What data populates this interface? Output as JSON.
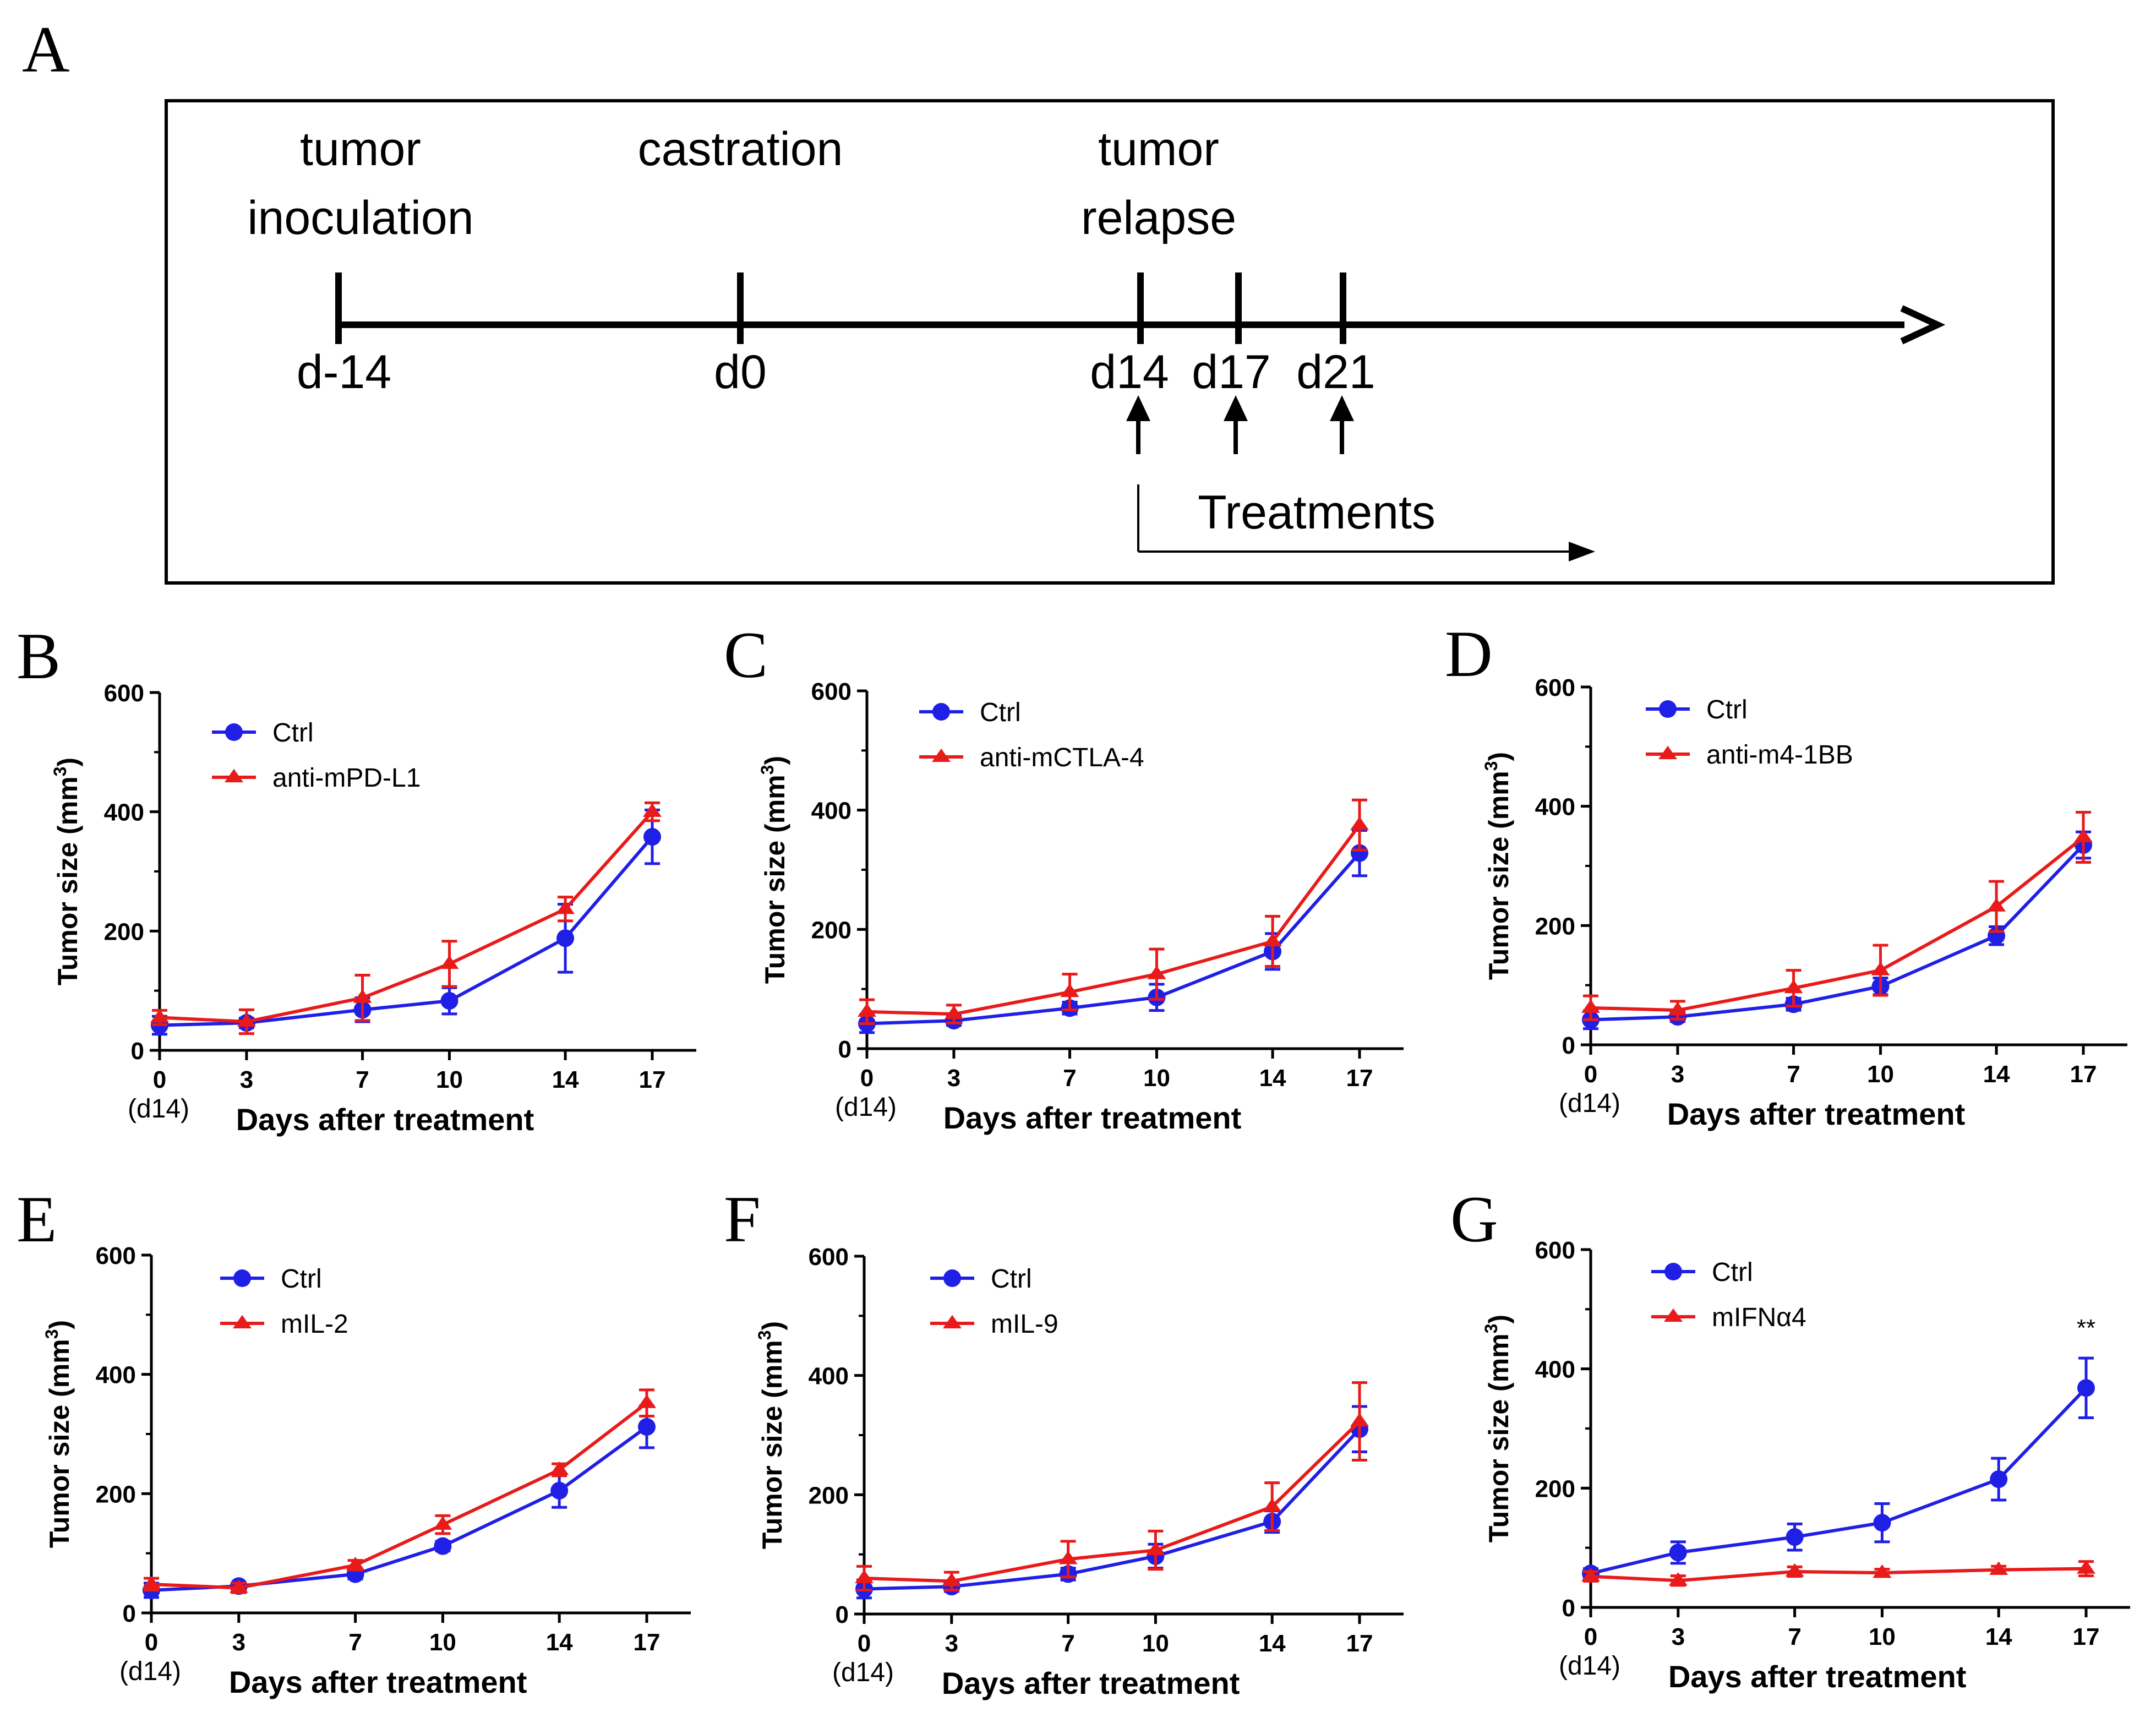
{
  "panelA": {
    "label": "A",
    "events": [
      {
        "title_lines": [
          "tumor",
          "inoculation"
        ],
        "day": "d-14"
      },
      {
        "title_lines": [
          "castration"
        ],
        "day": "d0"
      },
      {
        "title_lines": [
          "tumor",
          "relapse"
        ],
        "day": "d14"
      },
      {
        "title_lines": [],
        "day": "d17"
      },
      {
        "title_lines": [],
        "day": "d21"
      }
    ],
    "treatments_label": "Treatments"
  },
  "colors": {
    "ctrl": "#1f1fe6",
    "treat": "#e81a1a",
    "axis": "#000000"
  },
  "chart_data": [
    {
      "panel": "B",
      "type": "line",
      "x": [
        0,
        3,
        7,
        10,
        14,
        17
      ],
      "x_tick_labels": [
        "0",
        "3",
        "7",
        "10",
        "14",
        "17"
      ],
      "x_sublabel": "(d14)",
      "xlabel": "Days after treatment",
      "ylabel": "Tumor size (mm",
      "ylabel_sup": "3",
      "ylabel_end": ")",
      "ylim": [
        0,
        600
      ],
      "y_ticks": [
        "0",
        "200",
        "400",
        "600"
      ],
      "annotation": "",
      "series": [
        {
          "name": "Ctrl",
          "marker": "circle",
          "values": [
            42,
            46,
            68,
            83,
            188,
            358
          ],
          "errors": [
            15,
            8,
            20,
            22,
            57,
            45
          ]
        },
        {
          "name": "anti-mPD-L1",
          "marker": "triangle",
          "values": [
            55,
            48,
            88,
            145,
            237,
            400
          ],
          "errors": [
            12,
            20,
            38,
            38,
            20,
            15
          ]
        }
      ]
    },
    {
      "panel": "C",
      "type": "line",
      "x": [
        0,
        3,
        7,
        10,
        14,
        17
      ],
      "x_tick_labels": [
        "0",
        "3",
        "7",
        "10",
        "14",
        "17"
      ],
      "x_sublabel": "(d14)",
      "xlabel": "Days after treatment",
      "ylabel": "Tumor size (mm",
      "ylabel_sup": "3",
      "ylabel_end": ")",
      "ylim": [
        0,
        600
      ],
      "y_ticks": [
        "0",
        "200",
        "400",
        "600"
      ],
      "annotation": "",
      "series": [
        {
          "name": "Ctrl",
          "marker": "circle",
          "values": [
            42,
            47,
            68,
            86,
            163,
            328
          ],
          "errors": [
            15,
            8,
            10,
            22,
            30,
            38
          ]
        },
        {
          "name": "anti-mCTLA-4",
          "marker": "triangle",
          "values": [
            62,
            58,
            95,
            125,
            180,
            375
          ],
          "errors": [
            20,
            15,
            30,
            42,
            42,
            42
          ]
        }
      ]
    },
    {
      "panel": "D",
      "type": "line",
      "x": [
        0,
        3,
        7,
        10,
        14,
        17
      ],
      "x_tick_labels": [
        "0",
        "3",
        "7",
        "10",
        "14",
        "17"
      ],
      "x_sublabel": "(d14)",
      "xlabel": "Days after treatment",
      "ylabel": "Tumor size (mm",
      "ylabel_sup": "3",
      "ylabel_end": ")",
      "ylim": [
        0,
        600
      ],
      "y_ticks": [
        "0",
        "200",
        "400",
        "600"
      ],
      "annotation": "",
      "series": [
        {
          "name": "Ctrl",
          "marker": "circle",
          "values": [
            42,
            47,
            68,
            98,
            183,
            335
          ],
          "errors": [
            15,
            8,
            10,
            14,
            15,
            22
          ]
        },
        {
          "name": "anti-m4-1BB",
          "marker": "triangle",
          "values": [
            62,
            58,
            95,
            125,
            232,
            348
          ],
          "errors": [
            20,
            15,
            30,
            42,
            42,
            42
          ]
        }
      ]
    },
    {
      "panel": "E",
      "type": "line",
      "x": [
        0,
        3,
        7,
        10,
        14,
        17
      ],
      "x_tick_labels": [
        "0",
        "3",
        "7",
        "10",
        "14",
        "17"
      ],
      "x_sublabel": "(d14)",
      "xlabel": "Days after treatment",
      "ylabel": "Tumor size (mm",
      "ylabel_sup": "3",
      "ylabel_end": ")",
      "ylim": [
        0,
        600
      ],
      "y_ticks": [
        "0",
        "200",
        "400",
        "600"
      ],
      "annotation": "",
      "series": [
        {
          "name": "Ctrl",
          "marker": "circle",
          "values": [
            38,
            45,
            65,
            112,
            205,
            312
          ],
          "errors": [
            12,
            5,
            8,
            8,
            28,
            35
          ]
        },
        {
          "name": "mIL-2",
          "marker": "triangle",
          "values": [
            48,
            42,
            80,
            148,
            240,
            352
          ],
          "errors": [
            10,
            8,
            8,
            15,
            10,
            22
          ]
        }
      ]
    },
    {
      "panel": "F",
      "type": "line",
      "x": [
        0,
        3,
        7,
        10,
        14,
        17
      ],
      "x_tick_labels": [
        "0",
        "3",
        "7",
        "10",
        "14",
        "17"
      ],
      "x_sublabel": "(d14)",
      "xlabel": "Days after treatment",
      "ylabel": "Tumor size (mm",
      "ylabel_sup": "3",
      "ylabel_end": ")",
      "ylim": [
        0,
        600
      ],
      "y_ticks": [
        "0",
        "200",
        "400",
        "600"
      ],
      "annotation": "",
      "series": [
        {
          "name": "Ctrl",
          "marker": "circle",
          "values": [
            42,
            46,
            67,
            97,
            155,
            310
          ],
          "errors": [
            15,
            8,
            10,
            20,
            18,
            38
          ]
        },
        {
          "name": "mIL-9",
          "marker": "triangle",
          "values": [
            60,
            55,
            92,
            107,
            180,
            323
          ],
          "errors": [
            20,
            15,
            30,
            32,
            40,
            65
          ]
        }
      ]
    },
    {
      "panel": "G",
      "type": "line",
      "x": [
        0,
        3,
        7,
        10,
        14,
        17
      ],
      "x_tick_labels": [
        "0",
        "3",
        "7",
        "10",
        "14",
        "17"
      ],
      "x_sublabel": "(d14)",
      "xlabel": "Days after treatment",
      "ylabel": "Tumor size (mm",
      "ylabel_sup": "3",
      "ylabel_end": ")",
      "ylim": [
        0,
        600
      ],
      "y_ticks": [
        "0",
        "200",
        "400",
        "600"
      ],
      "annotation": "**",
      "series": [
        {
          "name": "Ctrl",
          "marker": "circle",
          "values": [
            57,
            92,
            118,
            142,
            215,
            368
          ],
          "errors": [
            8,
            18,
            22,
            32,
            35,
            50
          ]
        },
        {
          "name": "mIFNα4",
          "marker": "triangle",
          "values": [
            52,
            45,
            60,
            58,
            63,
            65
          ],
          "errors": [
            8,
            8,
            8,
            6,
            6,
            12
          ]
        }
      ]
    }
  ]
}
